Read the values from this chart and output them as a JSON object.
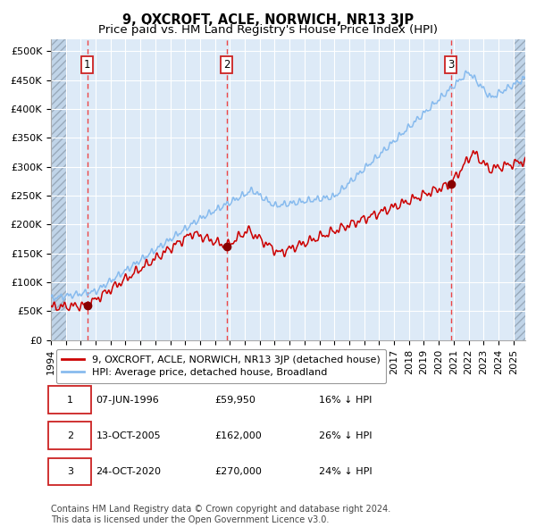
{
  "title": "9, OXCROFT, ACLE, NORWICH, NR13 3JP",
  "subtitle": "Price paid vs. HM Land Registry's House Price Index (HPI)",
  "ylim": [
    0,
    520000
  ],
  "yticks": [
    0,
    50000,
    100000,
    150000,
    200000,
    250000,
    300000,
    350000,
    400000,
    450000,
    500000
  ],
  "ytick_labels": [
    "£0",
    "£50K",
    "£100K",
    "£150K",
    "£200K",
    "£250K",
    "£300K",
    "£350K",
    "£400K",
    "£450K",
    "£500K"
  ],
  "xlim_start": 1994.0,
  "xlim_end": 2025.8,
  "bg_color": "#ddeaf7",
  "hatch_color": "#c0d4e8",
  "grid_color": "#ffffff",
  "red_line_color": "#cc0000",
  "blue_line_color": "#88bbee",
  "sale_marker_color": "#880000",
  "vline_color": "#ee3333",
  "sale_dates": [
    1996.44,
    2005.78,
    2020.81
  ],
  "sale_prices": [
    59950,
    162000,
    270000
  ],
  "sale_numbers": [
    "1",
    "2",
    "3"
  ],
  "legend_red_label": "9, OXCROFT, ACLE, NORWICH, NR13 3JP (detached house)",
  "legend_blue_label": "HPI: Average price, detached house, Broadland",
  "table_data": [
    [
      "1",
      "07-JUN-1996",
      "£59,950",
      "16% ↓ HPI"
    ],
    [
      "2",
      "13-OCT-2005",
      "£162,000",
      "26% ↓ HPI"
    ],
    [
      "3",
      "24-OCT-2020",
      "£270,000",
      "24% ↓ HPI"
    ]
  ],
  "footer": "Contains HM Land Registry data © Crown copyright and database right 2024.\nThis data is licensed under the Open Government Licence v3.0.",
  "title_fontsize": 10.5,
  "subtitle_fontsize": 9.5,
  "tick_fontsize": 8,
  "legend_fontsize": 8,
  "table_fontsize": 8,
  "footer_fontsize": 7
}
